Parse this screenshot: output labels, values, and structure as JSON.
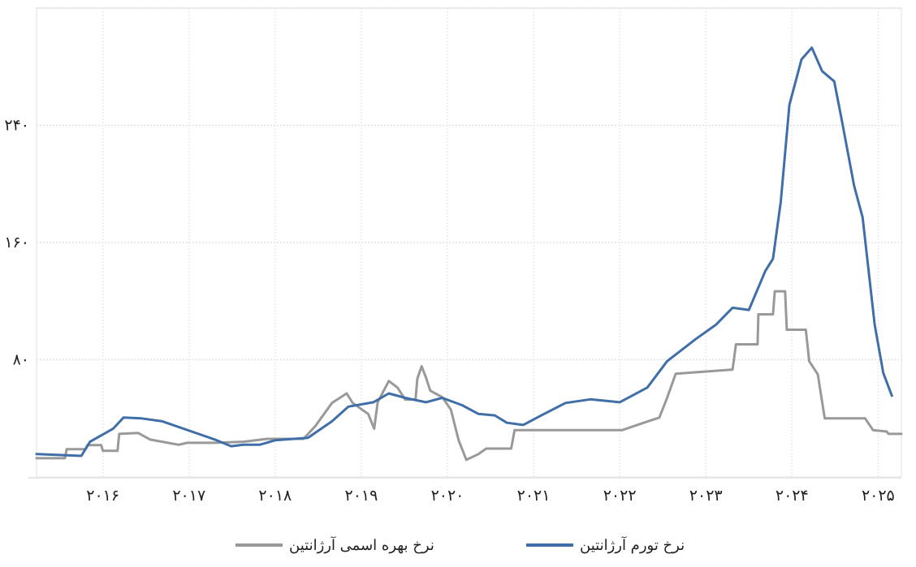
{
  "chart_data": {
    "type": "line",
    "title": "",
    "xlabel": "",
    "ylabel": "",
    "x_ticks": [
      "۲۰۱۶",
      "۲۰۱۷",
      "۲۰۱۸",
      "۲۰۱۹",
      "۲۰۲۰",
      "۲۰۲۱",
      "۲۰۲۲",
      "۲۰۲۳",
      "۲۰۲۴",
      "۲۰۲۵"
    ],
    "x_tick_values": [
      2016,
      2017,
      2018,
      2019,
      2020,
      2021,
      2022,
      2023,
      2024,
      2025
    ],
    "y_ticks": [
      "۸۰",
      "۱۶۰",
      "۲۴۰"
    ],
    "y_tick_values": [
      80,
      160,
      240
    ],
    "xlim": [
      2015.23,
      2025.27
    ],
    "ylim": [
      0,
      320
    ],
    "grid": true,
    "legend_position": "bottom",
    "series": [
      {
        "name": "نرخ تورم آرژانتین",
        "color": "#3f6ea8",
        "step": false,
        "points": [
          [
            2015.23,
            15.6
          ],
          [
            2015.75,
            14.4
          ],
          [
            2015.85,
            24
          ],
          [
            2016.12,
            33
          ],
          [
            2016.24,
            40.5
          ],
          [
            2016.45,
            40
          ],
          [
            2016.69,
            38
          ],
          [
            2017.3,
            25.5
          ],
          [
            2017.49,
            21
          ],
          [
            2017.63,
            22
          ],
          [
            2017.82,
            22
          ],
          [
            2018.0,
            25
          ],
          [
            2018.38,
            26.7
          ],
          [
            2018.66,
            38
          ],
          [
            2018.85,
            48
          ],
          [
            2019.14,
            51
          ],
          [
            2019.32,
            57
          ],
          [
            2019.51,
            54
          ],
          [
            2019.75,
            51
          ],
          [
            2019.94,
            54
          ],
          [
            2020.17,
            49
          ],
          [
            2020.36,
            43
          ],
          [
            2020.55,
            42
          ],
          [
            2020.69,
            37
          ],
          [
            2020.88,
            35.5
          ],
          [
            2021.09,
            42
          ],
          [
            2021.37,
            50.5
          ],
          [
            2021.66,
            53
          ],
          [
            2022.0,
            51
          ],
          [
            2022.32,
            61
          ],
          [
            2022.55,
            79
          ],
          [
            2022.88,
            94
          ],
          [
            2023.12,
            104
          ],
          [
            2023.31,
            115.5
          ],
          [
            2023.5,
            114
          ],
          [
            2023.69,
            140.5
          ],
          [
            2023.78,
            149
          ],
          [
            2023.87,
            188
          ],
          [
            2023.97,
            254
          ],
          [
            2024.11,
            285
          ],
          [
            2024.23,
            293
          ],
          [
            2024.35,
            277
          ],
          [
            2024.49,
            270
          ],
          [
            2024.58,
            243
          ],
          [
            2024.72,
            199
          ],
          [
            2024.82,
            177
          ],
          [
            2024.96,
            104
          ],
          [
            2025.06,
            71
          ],
          [
            2025.16,
            55.5
          ]
        ]
      },
      {
        "name": "نرخ بهره اسمی آرژانتین",
        "color": "#999999",
        "step": true,
        "points": [
          [
            2015.23,
            12.8
          ],
          [
            2015.56,
            12.8
          ],
          [
            2015.58,
            19
          ],
          [
            2015.8,
            19
          ],
          [
            2015.82,
            21.7
          ],
          [
            2015.98,
            21.7
          ],
          [
            2016.0,
            17.8
          ],
          [
            2016.17,
            17.8
          ],
          [
            2016.19,
            29.4
          ],
          [
            2016.41,
            30
          ],
          [
            2016.55,
            25.5
          ],
          [
            2016.69,
            24
          ],
          [
            2016.88,
            22
          ],
          [
            2016.98,
            23.3
          ],
          [
            2017.3,
            23.3
          ],
          [
            2017.63,
            24
          ],
          [
            2017.91,
            26
          ],
          [
            2018.33,
            26
          ],
          [
            2018.47,
            35
          ],
          [
            2018.66,
            50.5
          ],
          [
            2018.83,
            57
          ],
          [
            2018.9,
            50.5
          ],
          [
            2019.08,
            43
          ],
          [
            2019.15,
            33
          ],
          [
            2019.19,
            51
          ],
          [
            2019.32,
            65.5
          ],
          [
            2019.42,
            61
          ],
          [
            2019.51,
            52.8
          ],
          [
            2019.63,
            52.8
          ],
          [
            2019.65,
            67
          ],
          [
            2019.7,
            75.5
          ],
          [
            2019.75,
            68
          ],
          [
            2019.8,
            58.9
          ],
          [
            2019.94,
            54.4
          ],
          [
            2020.04,
            46
          ],
          [
            2020.13,
            25
          ],
          [
            2020.22,
            11.7
          ],
          [
            2020.36,
            15.6
          ],
          [
            2020.45,
            19.4
          ],
          [
            2020.74,
            19.4
          ],
          [
            2020.78,
            32
          ],
          [
            2022.03,
            32
          ],
          [
            2022.32,
            37.8
          ],
          [
            2022.46,
            40.5
          ],
          [
            2022.55,
            54
          ],
          [
            2022.65,
            70.5
          ],
          [
            2023.02,
            72
          ],
          [
            2023.31,
            73.3
          ],
          [
            2023.35,
            90.5
          ],
          [
            2023.6,
            90.5
          ],
          [
            2023.61,
            111
          ],
          [
            2023.78,
            111
          ],
          [
            2023.8,
            126.7
          ],
          [
            2023.92,
            126.7
          ],
          [
            2023.94,
            100.5
          ],
          [
            2024.16,
            100.5
          ],
          [
            2024.2,
            79
          ],
          [
            2024.3,
            70
          ],
          [
            2024.38,
            40
          ],
          [
            2024.85,
            40
          ],
          [
            2024.94,
            32
          ],
          [
            2025.1,
            31
          ],
          [
            2025.12,
            29.4
          ],
          [
            2025.27,
            29.4
          ]
        ]
      }
    ]
  },
  "legend": {
    "items": [
      {
        "label": "نرخ تورم آرژانتین",
        "color": "#3f6ea8"
      },
      {
        "label": "نرخ بهره اسمی آرژانتین",
        "color": "#999999"
      }
    ]
  }
}
